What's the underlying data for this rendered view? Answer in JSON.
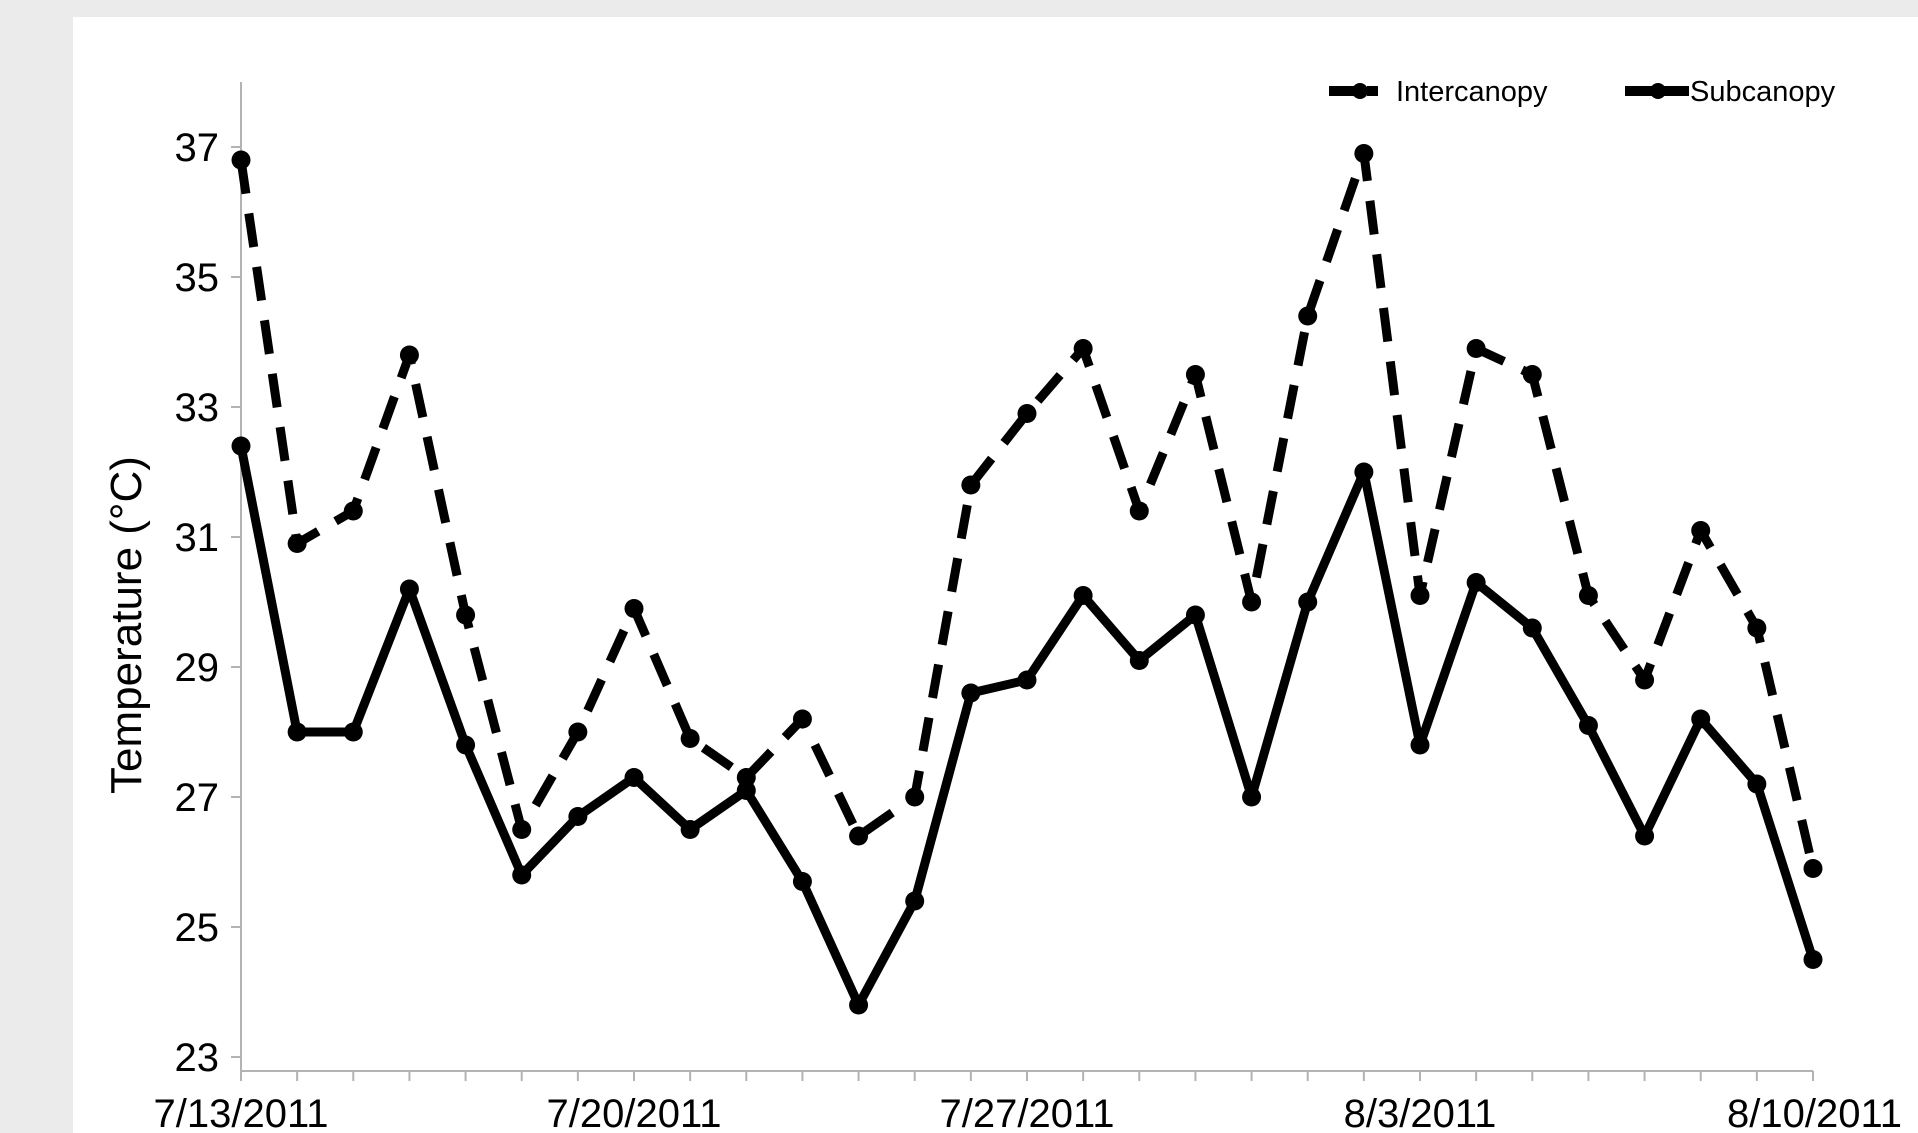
{
  "chart_data": {
    "type": "line",
    "title": "",
    "xlabel": "",
    "ylabel": "Temperature (°C)",
    "ylim": [
      23,
      38
    ],
    "yticks": [
      23,
      25,
      27,
      29,
      31,
      33,
      35,
      37
    ],
    "xlim": [
      "7/13/2011",
      "8/10/2011"
    ],
    "xtick_labels": [
      "7/13/2011",
      "7/20/2011",
      "7/27/2011",
      "8/3/2011",
      "8/10/2011"
    ],
    "grid": false,
    "legend_position": "top-right",
    "x": [
      "7/13/2011",
      "7/14/2011",
      "7/15/2011",
      "7/16/2011",
      "7/17/2011",
      "7/18/2011",
      "7/19/2011",
      "7/20/2011",
      "7/21/2011",
      "7/22/2011",
      "7/23/2011",
      "7/24/2011",
      "7/25/2011",
      "7/26/2011",
      "7/27/2011",
      "7/28/2011",
      "7/29/2011",
      "7/30/2011",
      "7/31/2011",
      "8/1/2011",
      "8/2/2011",
      "8/3/2011",
      "8/4/2011",
      "8/5/2011",
      "8/6/2011",
      "8/7/2011",
      "8/8/2011",
      "8/9/2011",
      "8/10/2011"
    ],
    "series": [
      {
        "name": "Intercanopy",
        "style": "dashed",
        "color": "#000000",
        "values": [
          36.8,
          30.9,
          31.4,
          33.8,
          29.8,
          26.5,
          28.0,
          29.9,
          27.9,
          27.3,
          28.2,
          26.4,
          27.0,
          31.8,
          32.9,
          33.9,
          31.4,
          33.5,
          30.0,
          34.4,
          36.9,
          30.1,
          33.9,
          33.5,
          30.1,
          28.8,
          31.1,
          29.6,
          25.9
        ]
      },
      {
        "name": "Subcanopy",
        "style": "solid",
        "color": "#000000",
        "values": [
          32.4,
          28.0,
          28.0,
          30.2,
          27.8,
          25.8,
          26.7,
          27.3,
          26.5,
          27.1,
          25.7,
          23.8,
          25.4,
          28.6,
          28.8,
          30.1,
          29.1,
          29.8,
          27.0,
          30.0,
          32.0,
          27.8,
          30.3,
          29.6,
          28.1,
          26.4,
          28.2,
          27.2,
          24.5
        ]
      }
    ]
  }
}
